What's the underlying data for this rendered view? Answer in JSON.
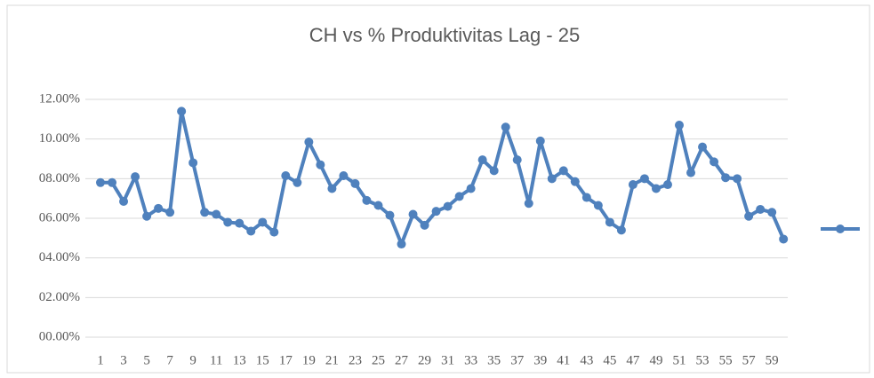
{
  "chart_data": {
    "type": "line",
    "title": "CH vs % Produktivitas Lag  - 25",
    "categories": [
      "1",
      null,
      "3",
      null,
      "5",
      null,
      "7",
      null,
      "9",
      null,
      "11",
      null,
      "13",
      null,
      "15",
      null,
      "17",
      null,
      "19",
      null,
      "21",
      null,
      "23",
      null,
      "25",
      null,
      "27",
      null,
      "29",
      null,
      "31",
      null,
      "33",
      null,
      "35",
      null,
      "37",
      null,
      "39",
      null,
      "41",
      null,
      "43",
      null,
      "45",
      null,
      "47",
      null,
      "49",
      null,
      "51",
      null,
      "53",
      null,
      "55",
      null,
      "57",
      null,
      "59",
      null
    ],
    "series": [
      {
        "color": "#4f81bd",
        "values": [
          7.8,
          7.8,
          6.85,
          8.1,
          6.1,
          6.5,
          6.3,
          11.4,
          8.8,
          6.3,
          6.2,
          5.8,
          5.75,
          5.35,
          5.8,
          5.3,
          8.15,
          7.8,
          9.85,
          8.7,
          7.5,
          8.15,
          7.75,
          6.9,
          6.65,
          6.15,
          4.7,
          6.2,
          5.65,
          6.35,
          6.6,
          7.1,
          7.5,
          8.95,
          8.4,
          10.6,
          8.95,
          6.75,
          9.9,
          8.0,
          8.4,
          7.85,
          7.05,
          6.65,
          5.8,
          5.4,
          7.7,
          8.0,
          7.5,
          7.7,
          10.7,
          8.3,
          9.6,
          8.85,
          8.05,
          8.0,
          6.1,
          6.45,
          6.3,
          4.95
        ]
      }
    ],
    "ylim": [
      0,
      12
    ],
    "yticks": [
      {
        "value": 0,
        "label": "00.00%"
      },
      {
        "value": 2,
        "label": "02.00%"
      },
      {
        "value": 4,
        "label": "04.00%"
      },
      {
        "value": 6,
        "label": "06.00%"
      },
      {
        "value": 8,
        "label": "08.00%"
      },
      {
        "value": 10,
        "label": "10.00%"
      },
      {
        "value": 12,
        "label": "12.00%"
      }
    ],
    "grid": true,
    "legend": "right"
  }
}
